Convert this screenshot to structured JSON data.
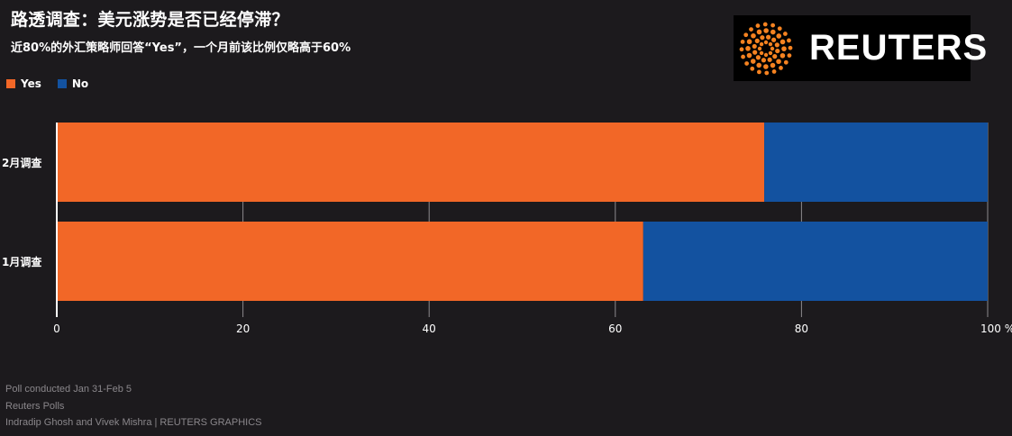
{
  "header": {
    "title": "路透调查：美元涨势是否已经停滞？",
    "subtitle": "近80%的外汇策略师回答“Yes”，一个月前该比例仅略高于60%"
  },
  "logo": {
    "text": "REUTERS"
  },
  "colors": {
    "yes": "#f26727",
    "no": "#1352a0",
    "background": "#1c1a1d",
    "grid": "#8c898d"
  },
  "chart_data": {
    "type": "bar",
    "orientation": "horizontal",
    "stacked": true,
    "categories": [
      "2月调查",
      "1月调查"
    ],
    "series": [
      {
        "name": "Yes",
        "values": [
          76,
          63
        ]
      },
      {
        "name": "No",
        "values": [
          24,
          37
        ]
      }
    ],
    "xlim": [
      0,
      100
    ],
    "xticks": [
      "0",
      "20",
      "40",
      "60",
      "80",
      "100 %"
    ],
    "legend_placement": "top-left",
    "grid": true
  },
  "footer": {
    "line1": "Poll conducted Jan 31-Feb 5",
    "line2": "Reuters Polls",
    "line3": "Indradip Ghosh and Vivek Mishra    | REUTERS GRAPHICS"
  }
}
